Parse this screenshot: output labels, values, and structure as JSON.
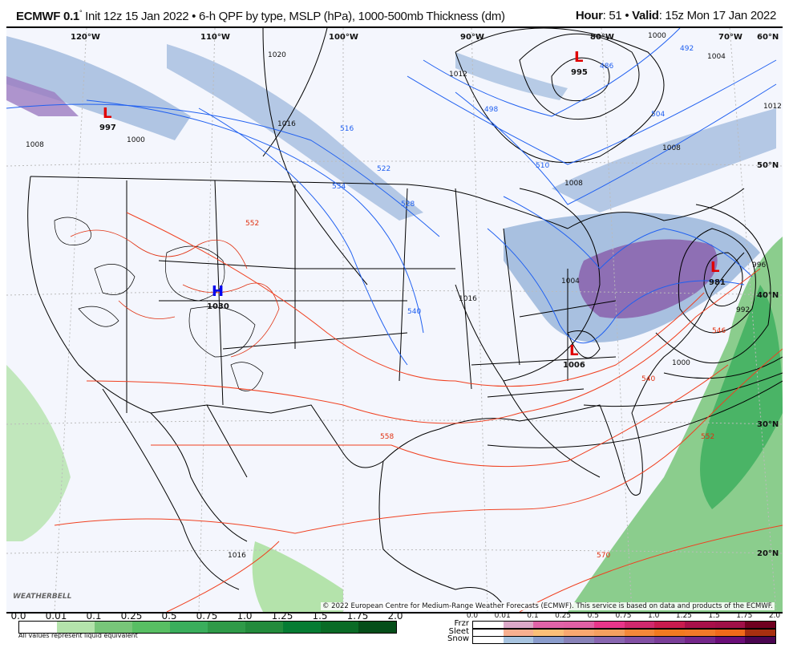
{
  "header": {
    "model": "ECMWF 0.1",
    "degree": "°",
    "init": "Init 12z 15 Jan 2022",
    "sep": "•",
    "product": "6-h QPF by type, MSLP (hPa), 1000-500mb Thickness (dm)",
    "hour_label": "Hour",
    "hour": ": 51",
    "valid_label": "Valid",
    "valid": ": 15z Mon 17 Jan 2022"
  },
  "map": {
    "lon_labels": [
      "120°W",
      "110°W",
      "100°W",
      "90°W",
      "80°W",
      "70°W"
    ],
    "lat_labels": [
      "60°N",
      "50°N",
      "40°N",
      "30°N",
      "20°N"
    ],
    "pressure_centers": [
      {
        "type": "L",
        "value": "997",
        "color": "#e00000"
      },
      {
        "type": "L",
        "value": "995",
        "color": "#e00000"
      },
      {
        "type": "H",
        "value": "1030",
        "color": "#0000ee"
      },
      {
        "type": "L",
        "value": "981",
        "color": "#e00000"
      },
      {
        "type": "L",
        "value": "1006",
        "color": "#e00000"
      }
    ],
    "isobar_labels": [
      "1020",
      "1012",
      "1016",
      "1008",
      "1000",
      "1012",
      "1008",
      "1004",
      "1000",
      "1008",
      "1004",
      "1016",
      "992",
      "996",
      "1000",
      "1016"
    ],
    "thickness_labels": [
      "516",
      "522",
      "528",
      "534",
      "540",
      "498",
      "504",
      "510",
      "486",
      "492",
      "552",
      "558",
      "546",
      "540",
      "570",
      "552"
    ],
    "copyright": "© 2022 European Centre for Medium-Range Weather Forecasts (ECMWF). This service is based on data and products of the ECMWF.",
    "logo": "WeatherBELL"
  },
  "legend_rain": {
    "ticks": [
      "0.0",
      "0.01",
      "0.1",
      "0.25",
      "0.5",
      "0.75",
      "1.0",
      "1.25",
      "1.5",
      "1.75",
      "2.0"
    ],
    "colors": [
      "#ffffff",
      "#b4e3ab",
      "#78c679",
      "#58bf63",
      "#3aae5c",
      "#2f9a48",
      "#238b3c",
      "#067c33",
      "#0a6b26",
      "#054e19"
    ],
    "note": "All values represent liquid equivalent"
  },
  "legend_ptype": {
    "ticks": [
      "0.0",
      "0.01",
      "0.1",
      "0.25",
      "0.5",
      "0.75",
      "1.0",
      "1.25",
      "1.5",
      "1.75",
      "2.0"
    ],
    "rows": [
      {
        "label": "Frzr",
        "colors": [
          "#ffffff",
          "#dba8c8",
          "#e063a8",
          "#e060a5",
          "#e8368a",
          "#d02a6e",
          "#c81c4f",
          "#a8104a",
          "#a01048",
          "#700020"
        ]
      },
      {
        "label": "Sleet",
        "colors": [
          "#ffffff",
          "#f8b090",
          "#fbbf78",
          "#f8a870",
          "#f4a060",
          "#f4883a",
          "#f27a20",
          "#f47a28",
          "#f26a1a",
          "#a83010"
        ]
      },
      {
        "label": "Snow",
        "colors": [
          "#ffffff",
          "#a8c4e0",
          "#8a9ccc",
          "#8882b8",
          "#8866b0",
          "#8250a4",
          "#7a3e98",
          "#74278a",
          "#6a0e78",
          "#4a0550"
        ]
      }
    ]
  }
}
